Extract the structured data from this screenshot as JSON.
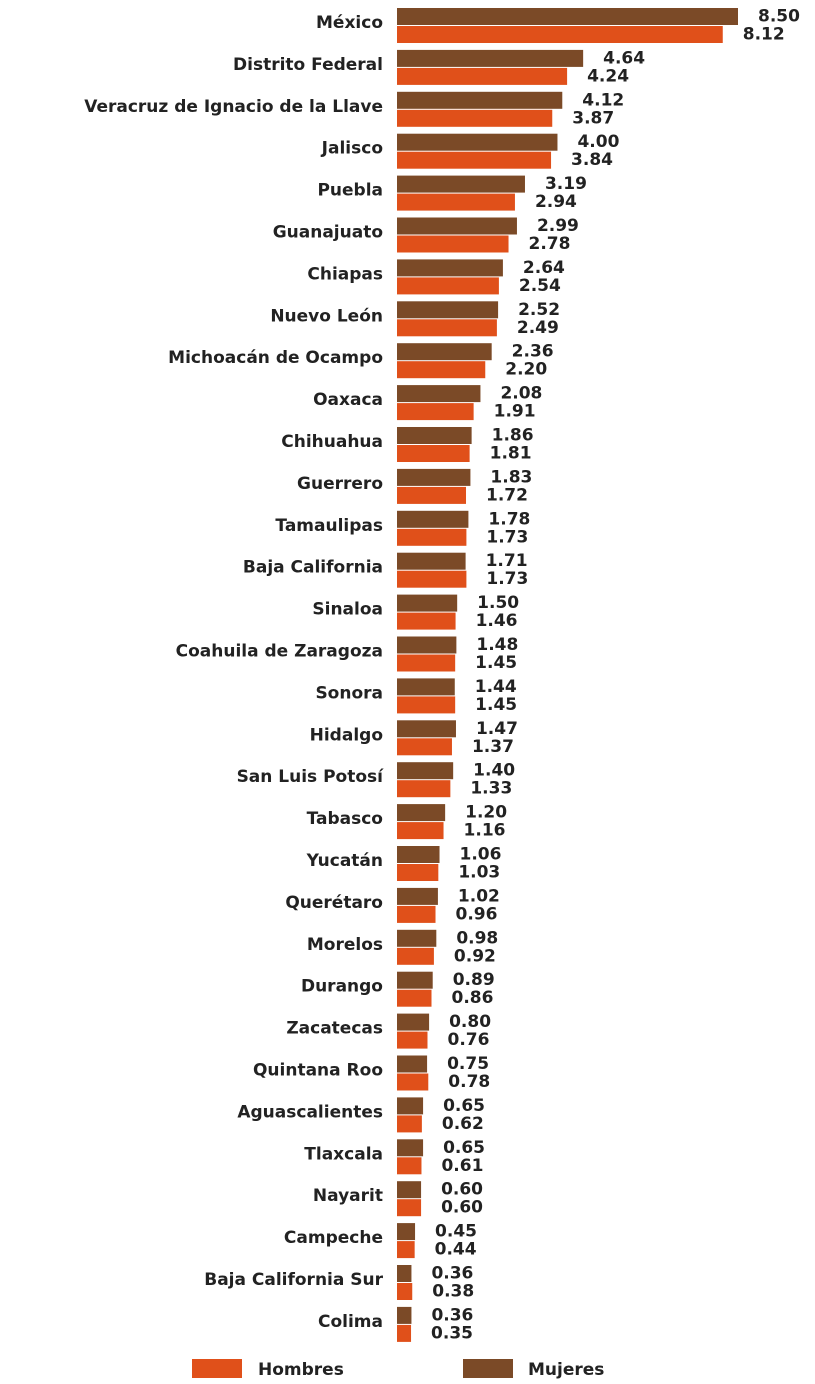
{
  "chart_data": {
    "type": "hbar",
    "categories": [
      "México",
      "Distrito Federal",
      "Veracruz de Ignacio de la Llave",
      "Jalisco",
      "Puebla",
      "Guanajuato",
      "Chiapas",
      "Nuevo León",
      "Michoacán de Ocampo",
      "Oaxaca",
      "Chihuahua",
      "Guerrero",
      "Tamaulipas",
      "Baja California",
      "Sinaloa",
      "Coahuila de Zaragoza",
      "Sonora",
      "Hidalgo",
      "San Luis Potosí",
      "Tabasco",
      "Yucatán",
      "Querétaro",
      "Morelos",
      "Durango",
      "Zacatecas",
      "Quintana Roo",
      "Aguascalientes",
      "Tlaxcala",
      "Nayarit",
      "Campeche",
      "Baja California Sur",
      "Colima"
    ],
    "series": [
      {
        "name": "Hombres",
        "color": "#e0501a",
        "values": [
          8.12,
          4.24,
          3.87,
          3.84,
          2.94,
          2.78,
          2.54,
          2.49,
          2.2,
          1.91,
          1.81,
          1.72,
          1.73,
          1.73,
          1.46,
          1.45,
          1.45,
          1.37,
          1.33,
          1.16,
          1.03,
          0.96,
          0.92,
          0.86,
          0.76,
          0.78,
          0.62,
          0.61,
          0.6,
          0.44,
          0.38,
          0.35
        ],
        "value_labels": [
          "8.12",
          "4.24",
          "3.87",
          "3.84",
          "2.94",
          "2.78",
          "2.54",
          "2.49",
          "2.20",
          "1.91",
          "1.81",
          "1.72",
          "1.73",
          "1.73",
          "1.46",
          "1.45",
          "1.45",
          "1.37",
          "1.33",
          "1.16",
          "1.03",
          "0.96",
          "0.92",
          "0.86",
          "0.76",
          "0.78",
          "0.62",
          "0.61",
          "0.60",
          "0.44",
          "0.38",
          "0.35"
        ]
      },
      {
        "name": "Mujeres",
        "color": "#7b4a27",
        "values": [
          8.5,
          4.64,
          4.12,
          4.0,
          3.19,
          2.99,
          2.64,
          2.52,
          2.36,
          2.08,
          1.86,
          1.83,
          1.78,
          1.71,
          1.5,
          1.48,
          1.44,
          1.47,
          1.4,
          1.2,
          1.06,
          1.02,
          0.98,
          0.89,
          0.8,
          0.75,
          0.65,
          0.65,
          0.6,
          0.45,
          0.36,
          0.36
        ],
        "value_labels": [
          "8.50",
          "4.64",
          "4.12",
          "4.00",
          "3.19",
          "2.99",
          "2.64",
          "2.52",
          "2.36",
          "2.08",
          "1.86",
          "1.83",
          "1.78",
          "1.71",
          "1.50",
          "1.48",
          "1.44",
          "1.47",
          "1.40",
          "1.20",
          "1.06",
          "1.02",
          "0.98",
          "0.89",
          "0.80",
          "0.75",
          "0.65",
          "0.65",
          "0.60",
          "0.45",
          "0.36",
          "0.36"
        ]
      }
    ]
  }
}
